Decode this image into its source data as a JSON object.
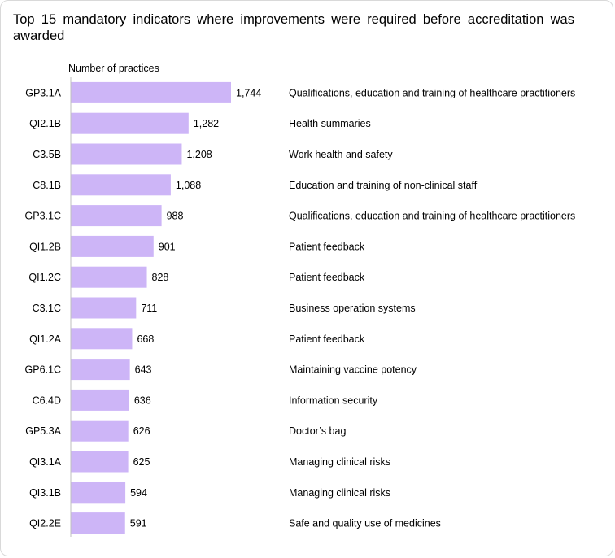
{
  "title": "Top 15 mandatory indicators where improvements were required before accreditation was awarded",
  "colors": {
    "bar": "#cdb5f7",
    "axis": "#bfbfbf",
    "text": "#000000"
  },
  "chart_data": {
    "type": "bar",
    "orientation": "horizontal",
    "title": "Top 15 mandatory indicators where improvements were required before accreditation was awarded",
    "xlabel": "Number of practices",
    "ylabel": "",
    "grid": false,
    "legend": "none",
    "xlim": [
      0,
      1744
    ],
    "categories": [
      "GP3.1A",
      "QI2.1B",
      "C3.5B",
      "C8.1B",
      "GP3.1C",
      "QI1.2B",
      "QI1.2C",
      "C3.1C",
      "QI1.2A",
      "GP6.1C",
      "C6.4D",
      "GP5.3A",
      "QI3.1A",
      "QI3.1B",
      "QI2.2E"
    ],
    "values": [
      1744,
      1282,
      1208,
      1088,
      988,
      901,
      828,
      711,
      668,
      643,
      636,
      626,
      625,
      594,
      591
    ],
    "value_labels": [
      "1,744",
      "1,282",
      "1,208",
      "1,088",
      "988",
      "901",
      "828",
      "711",
      "668",
      "643",
      "636",
      "626",
      "625",
      "594",
      "591"
    ],
    "descriptions": [
      "Qualifications, education and training of healthcare practitioners",
      "Health summaries",
      "Work health and safety",
      "Education and training of non-clinical staff",
      "Qualifications, education and training of healthcare practitioners",
      "Patient feedback",
      "Patient feedback",
      "Business operation systems",
      "Patient feedback",
      "Maintaining vaccine potency",
      "Information security",
      "Doctor’s bag",
      "Managing clinical risks",
      "Managing clinical risks",
      "Safe and quality use of medicines"
    ]
  }
}
